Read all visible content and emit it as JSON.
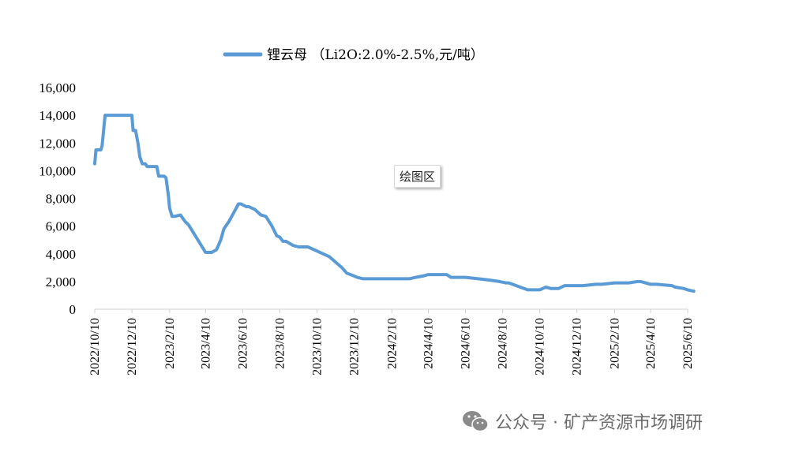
{
  "chart_data": {
    "type": "line",
    "legend": "锂云母 （Li2O:2.0%-2.5%,元/吨）",
    "legend_position": "top",
    "series_color": "#5b9bd5",
    "ylim": [
      0,
      16000
    ],
    "yticks": [
      "0",
      "2,000",
      "4,000",
      "6,000",
      "8,000",
      "10,000",
      "12,000",
      "14,000",
      "16,000"
    ],
    "xticks": [
      "2022/10/10",
      "2022/12/10",
      "2023/2/10",
      "2023/4/10",
      "2023/6/10",
      "2023/8/10",
      "2023/10/10",
      "2023/12/10",
      "2024/2/10",
      "2024/4/10",
      "2024/6/10",
      "2024/8/10",
      "2024/10/10",
      "2024/12/10",
      "2025/2/10",
      "2025/4/10",
      "2025/6/10"
    ],
    "series": [
      {
        "x": [
          "2022-10-10",
          "2022-10-12",
          "2022-10-20",
          "2022-10-22",
          "2022-10-27",
          "2022-12-10",
          "2022-12-12",
          "2022-12-16",
          "2022-12-20",
          "2022-12-23",
          "2022-12-27",
          "2023-01-01",
          "2023-01-04",
          "2023-01-20",
          "2023-01-23",
          "2023-02-01",
          "2023-02-04",
          "2023-02-08",
          "2023-02-10",
          "2023-02-14",
          "2023-02-18",
          "2023-02-28",
          "2023-03-03",
          "2023-03-08",
          "2023-03-13",
          "2023-03-20",
          "2023-04-10",
          "2023-04-20",
          "2023-04-28",
          "2023-05-05",
          "2023-05-10",
          "2023-05-18",
          "2023-05-28",
          "2023-06-03",
          "2023-06-07",
          "2023-06-16",
          "2023-06-20",
          "2023-06-30",
          "2023-07-10",
          "2023-07-18",
          "2023-07-28",
          "2023-08-05",
          "2023-08-10",
          "2023-08-15",
          "2023-08-20",
          "2023-09-01",
          "2023-09-10",
          "2023-09-25",
          "2023-10-10",
          "2023-10-30",
          "2023-11-20",
          "2023-11-28",
          "2023-12-10",
          "2023-12-15",
          "2023-12-25",
          "2024-01-05",
          "2024-02-10",
          "2024-03-10",
          "2024-03-20",
          "2024-04-01",
          "2024-04-10",
          "2024-05-10",
          "2024-05-17",
          "2024-06-10",
          "2024-07-01",
          "2024-07-20",
          "2024-08-05",
          "2024-08-15",
          "2024-08-20",
          "2024-09-20",
          "2024-09-25",
          "2024-10-01",
          "2024-10-10",
          "2024-10-20",
          "2024-10-28",
          "2024-11-10",
          "2024-11-20",
          "2024-12-10",
          "2024-12-20",
          "2025-01-10",
          "2025-01-20",
          "2025-02-10",
          "2025-02-25",
          "2025-03-05",
          "2025-03-20",
          "2025-03-25",
          "2025-04-10",
          "2025-04-20",
          "2025-05-15",
          "2025-05-20",
          "2025-06-03",
          "2025-06-10",
          "2025-06-20"
        ],
        "y": [
          10500,
          11500,
          11500,
          11800,
          14000,
          14000,
          12900,
          12900,
          12000,
          11000,
          10500,
          10500,
          10300,
          10300,
          9600,
          9600,
          9500,
          8200,
          7300,
          6700,
          6700,
          6800,
          6600,
          6300,
          6100,
          5600,
          4100,
          4100,
          4300,
          5000,
          5800,
          6300,
          7100,
          7600,
          7600,
          7400,
          7400,
          7200,
          6800,
          6700,
          6000,
          5300,
          5200,
          4900,
          4900,
          4600,
          4500,
          4500,
          4200,
          3800,
          3000,
          2600,
          2400,
          2300,
          2200,
          2200,
          2200,
          2200,
          2300,
          2400,
          2500,
          2500,
          2300,
          2300,
          2200,
          2100,
          2000,
          1900,
          1900,
          1400,
          1400,
          1400,
          1400,
          1600,
          1500,
          1500,
          1700,
          1700,
          1700,
          1800,
          1800,
          1900,
          1900,
          1900,
          2000,
          2000,
          1800,
          1800,
          1700,
          1600,
          1500,
          1400,
          1300
        ]
      }
    ]
  },
  "tooltip": "绘图区",
  "watermark": {
    "text": "公众号 · 矿产资源市场调研",
    "icon": "wechat-icon"
  }
}
